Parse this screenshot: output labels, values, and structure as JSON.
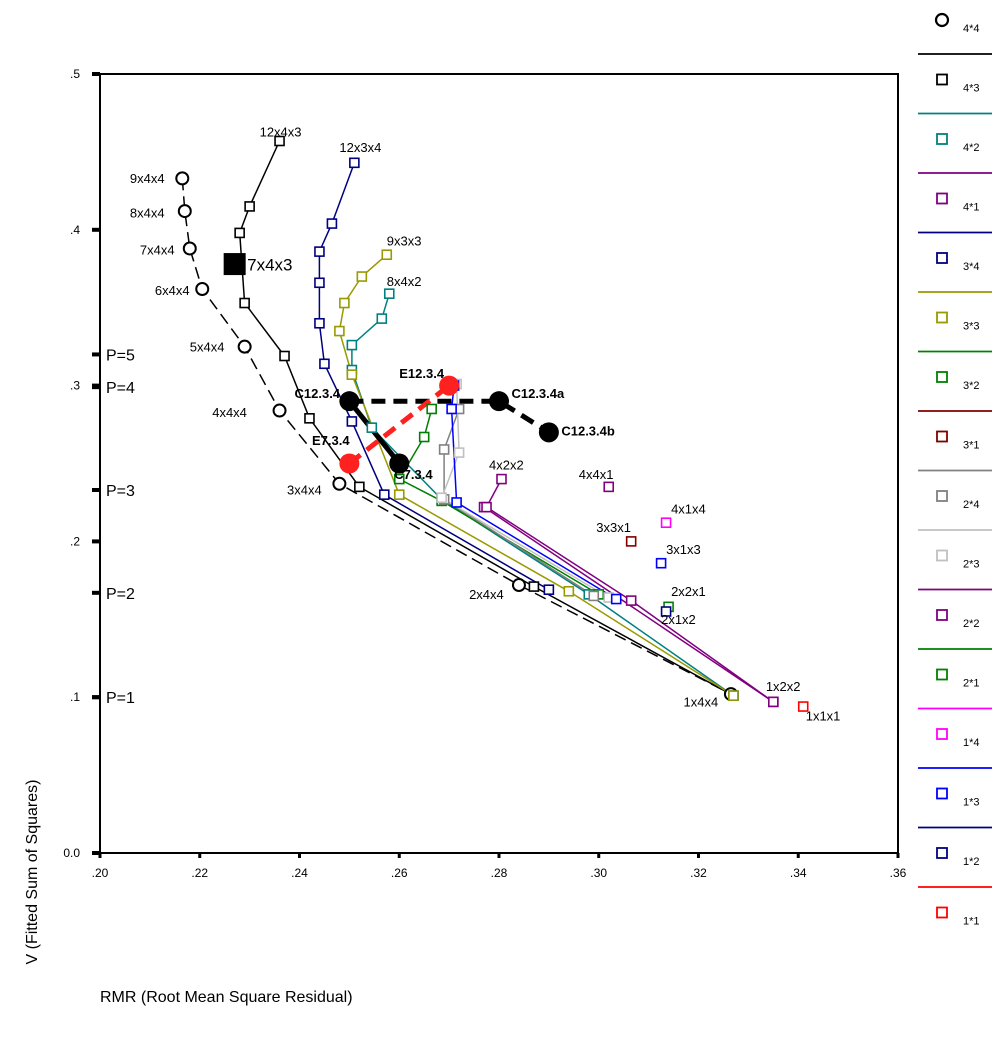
{
  "chart_data": {
    "type": "line",
    "xlabel": "RMR (Root Mean Square Residual)",
    "ylabel": "V (Fitted Sum of Squares)",
    "xlim": [
      0.2,
      0.36
    ],
    "ylim": [
      0.0,
      0.5
    ],
    "x_ticks": [
      ".20",
      ".22",
      ".24",
      ".26",
      ".28",
      ".30",
      ".32",
      ".34",
      ".36"
    ],
    "x_tick_values": [
      0.2,
      0.22,
      0.24,
      0.26,
      0.28,
      0.3,
      0.32,
      0.34,
      0.36
    ],
    "y_ticks": [
      "0.0",
      ".1",
      ".2",
      ".3",
      ".4",
      ".5"
    ],
    "y_tick_values": [
      0.0,
      0.1,
      0.2,
      0.3,
      0.4,
      0.5
    ],
    "grid": false,
    "legend_position": "right",
    "p_labels": [
      {
        "text": "P=1",
        "y": 0.1
      },
      {
        "text": "P=2",
        "y": 0.167
      },
      {
        "text": "P=3",
        "y": 0.233
      },
      {
        "text": "P=4",
        "y": 0.299
      },
      {
        "text": "P=5",
        "y": 0.32
      }
    ],
    "series": [
      {
        "name": "4*4",
        "color": "#000000",
        "marker": "circle",
        "dash": true,
        "points": [
          [
            0.2165,
            0.433
          ],
          [
            0.217,
            0.412
          ],
          [
            0.218,
            0.388
          ],
          [
            0.2205,
            0.362
          ],
          [
            0.229,
            0.325
          ],
          [
            0.236,
            0.284
          ],
          [
            0.248,
            0.237
          ],
          [
            0.284,
            0.172
          ],
          [
            0.3265,
            0.102
          ]
        ]
      },
      {
        "name": "4*3",
        "color": "#000000",
        "marker": "square",
        "points": [
          [
            0.236,
            0.457
          ],
          [
            0.23,
            0.415
          ],
          [
            0.228,
            0.398
          ],
          [
            0.229,
            0.353
          ],
          [
            0.237,
            0.319
          ],
          [
            0.242,
            0.279
          ],
          [
            0.252,
            0.235
          ],
          [
            0.287,
            0.171
          ],
          [
            0.327,
            0.101
          ]
        ]
      },
      {
        "name": "4*2",
        "color": "#008080",
        "marker": "square",
        "points": [
          [
            0.258,
            0.359
          ],
          [
            0.2565,
            0.343
          ],
          [
            0.2505,
            0.326
          ],
          [
            0.2505,
            0.31
          ],
          [
            0.2545,
            0.273
          ],
          [
            0.2685,
            0.227
          ],
          [
            0.298,
            0.166
          ],
          [
            0.327,
            0.101
          ]
        ]
      },
      {
        "name": "4*1",
        "color": "#800080",
        "marker": "square",
        "points": [
          [
            0.277,
            0.222
          ],
          [
            0.335,
            0.097
          ]
        ]
      },
      {
        "name": "3*4",
        "color": "#000080",
        "marker": "square",
        "points": [
          [
            0.251,
            0.443
          ],
          [
            0.2465,
            0.404
          ],
          [
            0.244,
            0.386
          ],
          [
            0.244,
            0.366
          ],
          [
            0.244,
            0.34
          ],
          [
            0.245,
            0.314
          ],
          [
            0.2505,
            0.277
          ],
          [
            0.257,
            0.23
          ],
          [
            0.29,
            0.169
          ]
        ]
      },
      {
        "name": "3*3",
        "color": "#999900",
        "marker": "square",
        "points": [
          [
            0.2575,
            0.384
          ],
          [
            0.2525,
            0.37
          ],
          [
            0.249,
            0.353
          ],
          [
            0.248,
            0.335
          ],
          [
            0.2505,
            0.307
          ],
          [
            0.26,
            0.23
          ],
          [
            0.294,
            0.168
          ],
          [
            0.327,
            0.101
          ]
        ]
      },
      {
        "name": "3*2",
        "color": "#008000",
        "marker": "square",
        "points": [
          [
            0.2665,
            0.285
          ],
          [
            0.265,
            0.267
          ],
          [
            0.26,
            0.24
          ],
          [
            0.2685,
            0.226
          ],
          [
            0.3,
            0.166
          ]
        ]
      },
      {
        "name": "3*1",
        "color": "#800000",
        "marker": "square",
        "points": []
      },
      {
        "name": "2*4",
        "color": "#808080",
        "marker": "square",
        "points": [
          [
            0.272,
            0.285
          ],
          [
            0.269,
            0.259
          ],
          [
            0.269,
            0.227
          ],
          [
            0.299,
            0.165
          ]
        ]
      },
      {
        "name": "2*3",
        "color": "#c0c0c0",
        "marker": "square",
        "points": [
          [
            0.2715,
            0.301
          ],
          [
            0.272,
            0.257
          ],
          [
            0.2685,
            0.228
          ],
          [
            0.302,
            0.164
          ]
        ]
      },
      {
        "name": "2*2",
        "color": "#800080",
        "marker": "square",
        "points": [
          [
            0.2805,
            0.24
          ],
          [
            0.2775,
            0.222
          ],
          [
            0.3065,
            0.162
          ],
          [
            0.335,
            0.097
          ]
        ]
      },
      {
        "name": "2*1",
        "color": "#008000",
        "marker": "square",
        "points": []
      },
      {
        "name": "1*4",
        "color": "#ff00ff",
        "marker": "square",
        "points": []
      },
      {
        "name": "1*3",
        "color": "#0000ff",
        "marker": "square",
        "points": [
          [
            0.271,
            0.3
          ],
          [
            0.2705,
            0.285
          ],
          [
            0.2715,
            0.225
          ],
          [
            0.3035,
            0.163
          ]
        ]
      },
      {
        "name": "1*2",
        "color": "#000080",
        "marker": "square",
        "points": []
      },
      {
        "name": "1*1",
        "color": "#ff0000",
        "marker": "square",
        "points": []
      }
    ],
    "single_points": [
      {
        "label": "4x4x1",
        "x": 0.302,
        "y": 0.235,
        "color": "#800080"
      },
      {
        "label": "4x1x4",
        "x": 0.3135,
        "y": 0.212,
        "color": "#ff00ff"
      },
      {
        "label": "3x3x1",
        "x": 0.3065,
        "y": 0.2,
        "color": "#800000"
      },
      {
        "label": "3x1x3",
        "x": 0.3125,
        "y": 0.186,
        "color": "#0000ff"
      },
      {
        "label": "2x2x1",
        "x": 0.314,
        "y": 0.158,
        "color": "#008000"
      },
      {
        "label": "2x1x2",
        "x": 0.3135,
        "y": 0.155,
        "color": "#000080"
      },
      {
        "label": "1x1x1",
        "x": 0.341,
        "y": 0.094,
        "color": "#ff0000"
      }
    ],
    "point_labels": [
      {
        "text": "12x4x3",
        "x": 0.232,
        "y": 0.46,
        "bold": false
      },
      {
        "text": "12x3x4",
        "x": 0.248,
        "y": 0.45,
        "bold": false
      },
      {
        "text": "9x4x4",
        "x": 0.206,
        "y": 0.43,
        "bold": false
      },
      {
        "text": "8x4x4",
        "x": 0.206,
        "y": 0.408,
        "bold": false
      },
      {
        "text": "9x3x3",
        "x": 0.2575,
        "y": 0.39,
        "bold": false
      },
      {
        "text": "7x4x4",
        "x": 0.208,
        "y": 0.384,
        "bold": false
      },
      {
        "text": "7x4x3",
        "x": 0.2295,
        "y": 0.374,
        "bold": false,
        "large": true
      },
      {
        "text": "8x4x2",
        "x": 0.2575,
        "y": 0.364,
        "bold": false
      },
      {
        "text": "6x4x4",
        "x": 0.211,
        "y": 0.358,
        "bold": false
      },
      {
        "text": "5x4x4",
        "x": 0.218,
        "y": 0.322,
        "bold": false
      },
      {
        "text": "E12.3.4",
        "x": 0.26,
        "y": 0.305,
        "bold": true
      },
      {
        "text": "C12.3.4",
        "x": 0.239,
        "y": 0.292,
        "bold": true
      },
      {
        "text": "C12.3.4a",
        "x": 0.2825,
        "y": 0.292,
        "bold": true
      },
      {
        "text": "4x4x4",
        "x": 0.2225,
        "y": 0.28,
        "bold": false
      },
      {
        "text": "C12.3.4b",
        "x": 0.2925,
        "y": 0.268,
        "bold": true
      },
      {
        "text": "E7.3.4",
        "x": 0.2425,
        "y": 0.262,
        "bold": true
      },
      {
        "text": "4x2x2",
        "x": 0.278,
        "y": 0.246,
        "bold": false
      },
      {
        "text": "4x4x1",
        "x": 0.296,
        "y": 0.24,
        "bold": false
      },
      {
        "text": "C7.3.4",
        "x": 0.259,
        "y": 0.24,
        "bold": true
      },
      {
        "text": "3x4x4",
        "x": 0.2375,
        "y": 0.23,
        "bold": false
      },
      {
        "text": "4x1x4",
        "x": 0.3145,
        "y": 0.218,
        "bold": false
      },
      {
        "text": "3x3x1",
        "x": 0.2995,
        "y": 0.206,
        "bold": false
      },
      {
        "text": "3x1x3",
        "x": 0.3135,
        "y": 0.192,
        "bold": false
      },
      {
        "text": "2x4x4",
        "x": 0.274,
        "y": 0.163,
        "bold": false
      },
      {
        "text": "2x2x1",
        "x": 0.3145,
        "y": 0.165,
        "bold": false
      },
      {
        "text": "2x1x2",
        "x": 0.3125,
        "y": 0.147,
        "bold": false
      },
      {
        "text": "1x2x2",
        "x": 0.3335,
        "y": 0.104,
        "bold": false
      },
      {
        "text": "1x4x4",
        "x": 0.317,
        "y": 0.094,
        "bold": false
      },
      {
        "text": "1x1x1",
        "x": 0.3415,
        "y": 0.085,
        "bold": false
      }
    ],
    "comparison_lines": [
      {
        "color": "#000000",
        "dash": true,
        "points": [
          [
            0.25,
            0.29
          ],
          [
            0.28,
            0.29
          ],
          [
            0.29,
            0.27
          ]
        ]
      },
      {
        "color": "#000000",
        "dash": false,
        "points": [
          [
            0.25,
            0.29
          ],
          [
            0.26,
            0.25
          ]
        ]
      },
      {
        "color": "#ff2020",
        "dash": true,
        "points": [
          [
            0.25,
            0.25
          ],
          [
            0.27,
            0.3
          ]
        ]
      }
    ],
    "big_markers": [
      {
        "x": 0.25,
        "y": 0.29,
        "color": "#000000",
        "shape": "circle"
      },
      {
        "x": 0.28,
        "y": 0.29,
        "color": "#000000",
        "shape": "circle"
      },
      {
        "x": 0.29,
        "y": 0.27,
        "color": "#000000",
        "shape": "circle"
      },
      {
        "x": 0.26,
        "y": 0.25,
        "color": "#000000",
        "shape": "circle"
      },
      {
        "x": 0.25,
        "y": 0.25,
        "color": "#ff2020",
        "shape": "circle"
      },
      {
        "x": 0.27,
        "y": 0.3,
        "color": "#ff2020",
        "shape": "circle"
      },
      {
        "x": 0.227,
        "y": 0.378,
        "color": "#000000",
        "shape": "square"
      }
    ]
  }
}
